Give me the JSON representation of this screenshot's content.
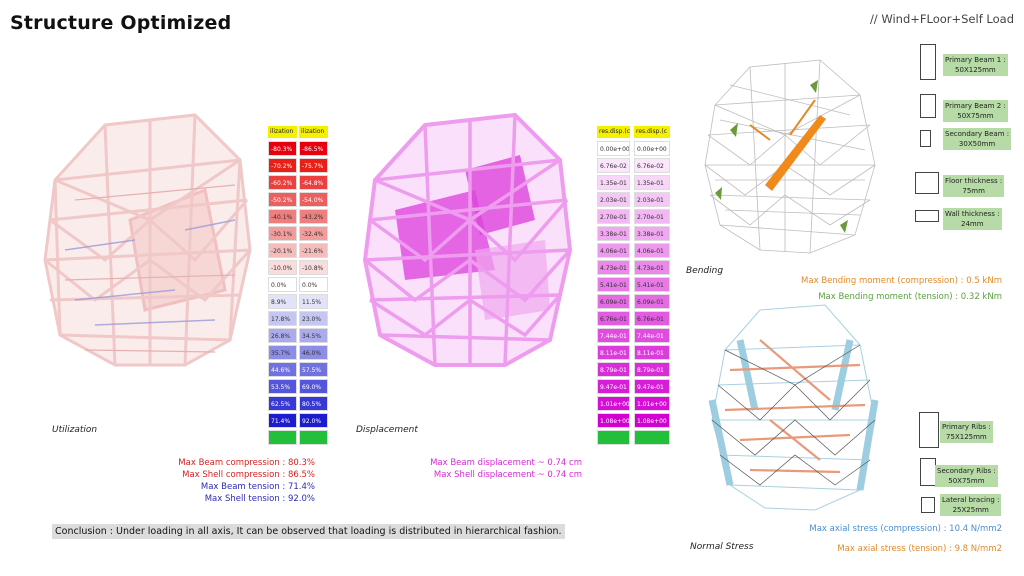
{
  "header": {
    "title": "Structure Optimized",
    "subtitle": "// Wind+FLoor+Self Load"
  },
  "captions": {
    "utilization": "Utilization",
    "displacement": "Displacement",
    "bending": "Bending",
    "normal_stress": "Normal Stress"
  },
  "utilization_legend": {
    "headers": [
      "ilization",
      "ilization"
    ],
    "col1": [
      "-80.3%",
      "-70.2%",
      "-60.2%",
      "-50.2%",
      "-40.1%",
      "-30.1%",
      "-20.1%",
      "-10.0%",
      "0.0%",
      "8.9%",
      "17.8%",
      "26.8%",
      "35.7%",
      "44.6%",
      "53.5%",
      "62.5%",
      "71.4%",
      ""
    ],
    "col2": [
      "-86.5%",
      "-75.7%",
      "-64.8%",
      "-54.0%",
      "-43.2%",
      "-32.4%",
      "-21.6%",
      "-10.8%",
      "0.0%",
      "11.5%",
      "23.0%",
      "34.5%",
      "46.0%",
      "57.5%",
      "69.0%",
      "80.5%",
      "92.0%",
      ""
    ],
    "colors": [
      "#e8000f",
      "#e82018",
      "#ea4040",
      "#ec5f5f",
      "#ef7e7e",
      "#f29d9d",
      "#f5bcbc",
      "#f9dcdc",
      "#ffffff",
      "#e2e2f8",
      "#c6c6f2",
      "#aaaaec",
      "#8d8de6",
      "#7171e0",
      "#5555da",
      "#3838d4",
      "#1c1cce",
      "#22c03a"
    ]
  },
  "displacement_legend": {
    "headers": [
      "res.disp.(c",
      "res.disp.(c"
    ],
    "col1": [
      "0.00e+00",
      "6.76e-02",
      "1.35e-01",
      "2.03e-01",
      "2.70e-01",
      "3.38e-01",
      "4.06e-01",
      "4.73e-01",
      "5.41e-01",
      "6.09e-01",
      "6.76e-01",
      "7.44e-01",
      "8.11e-01",
      "8.79e-01",
      "9.47e-01",
      "1.01e+00",
      "1.08e+00",
      ""
    ],
    "col2": [
      "0.00e+00",
      "6.76e-02",
      "1.35e-01",
      "2.03e-01",
      "2.70e-01",
      "3.38e-01",
      "4.06e-01",
      "4.73e-01",
      "5.41e-01",
      "6.09e-01",
      "6.76e-01",
      "7.44e-01",
      "8.11e-01",
      "8.79e-01",
      "9.47e-01",
      "1.01e+00",
      "1.08e+00",
      ""
    ],
    "colors": [
      "#ffffff",
      "#fbe6fb",
      "#f8d6f8",
      "#f5c7f5",
      "#f3b8f3",
      "#f0a8f0",
      "#ed99ed",
      "#ea89ea",
      "#e77ae7",
      "#e56be5",
      "#e25be2",
      "#df4cdf",
      "#dc3cdc",
      "#da2dda",
      "#d71ed7",
      "#d40ed4",
      "#d100d1",
      "#22c03a"
    ]
  },
  "utilization_stats": [
    {
      "text": "Max Beam compression : 80.3%",
      "color": "#d62020"
    },
    {
      "text": "Max Shell compression : 86.5%",
      "color": "#d62020"
    },
    {
      "text": "Max Beam tension : 71.4%",
      "color": "#2a2ab8"
    },
    {
      "text": "Max Shell tension : 92.0%",
      "color": "#2a2ab8"
    }
  ],
  "displacement_stats": [
    {
      "text": "Max Beam displacement ~ 0.74 cm",
      "color": "#d42ad4"
    },
    {
      "text": "Max Shell displacement ~ 0.74 cm",
      "color": "#d42ad4"
    }
  ],
  "bending_stats": [
    {
      "text": "Max Bending moment (compression) : 0.5 kNm",
      "color": "#e08a2a"
    },
    {
      "text": "Max Bending moment (tension) : 0.32 kNm",
      "color": "#5aa040"
    }
  ],
  "stress_stats": [
    {
      "text": "Max axial stress (compression) : 10.4 N/mm2",
      "color": "#4a8fd0"
    },
    {
      "text": "Max axial stress (tension) : 9.8 N/mm2",
      "color": "#e08a2a"
    }
  ],
  "bending_sections": [
    {
      "label_lines": [
        "Primary Beam 1 :",
        "50X125mm"
      ]
    },
    {
      "label_lines": [
        "Primary Beam 2 :",
        "50X75mm"
      ]
    },
    {
      "label_lines": [
        "Secondary Beam :",
        "30X50mm"
      ]
    },
    {
      "label_lines": [
        "Floor thickness :",
        "75mm"
      ]
    },
    {
      "label_lines": [
        "Wall thickness :",
        "24mm"
      ]
    }
  ],
  "stress_sections": [
    {
      "label_lines": [
        "Primary Ribs :",
        "75X125mm"
      ]
    },
    {
      "label_lines": [
        "Secondary Ribs :",
        "50X75mm"
      ]
    },
    {
      "label_lines": [
        "Lateral bracing :",
        "25X25mm"
      ]
    }
  ],
  "conclusion": "Conclusion : Under loading in all axis, It can be observed that loading is distributed in hierarchical fashion."
}
